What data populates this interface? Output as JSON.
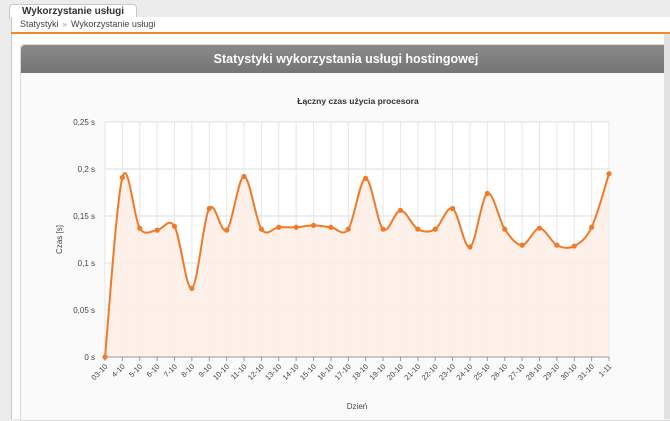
{
  "tab": {
    "title": "Wykorzystanie usługi"
  },
  "breadcrumb": {
    "items": [
      "Statystyki",
      "Wykorzystanie usługi"
    ],
    "separator": "»"
  },
  "panel": {
    "title": "Statystyki wykorzystania usługi hostingowej"
  },
  "colors": {
    "accent": "#f08a2c",
    "line": "#f07a2a",
    "fill": "#fdeee6",
    "header": "#7d7d7d"
  },
  "chart_data": {
    "type": "area",
    "title": "Łączny czas użycia procesora",
    "xlabel": "Dzień",
    "ylabel": "Czas [s]",
    "ylim": [
      0,
      0.25
    ],
    "yticks": [
      "0 s",
      "0,05 s",
      "0,1 s",
      "0,15 s",
      "0,2 s",
      "0,25 s"
    ],
    "categories": [
      "03-10",
      "4-10",
      "5-10",
      "6-10",
      "7-10",
      "8-10",
      "9-10",
      "10-10",
      "11-10",
      "12-10",
      "13-10",
      "14-10",
      "15-10",
      "16-10",
      "17-10",
      "18-10",
      "19-10",
      "20-10",
      "21-10",
      "22-10",
      "23-10",
      "24-10",
      "25-10",
      "26-10",
      "27-10",
      "28-10",
      "29-10",
      "30-10",
      "31-10",
      "1-11"
    ],
    "series": [
      {
        "values": [
          0,
          0.191,
          0.137,
          0.135,
          0.139,
          0.073,
          0.158,
          0.135,
          0.192,
          0.136,
          0.138,
          0.138,
          0.14,
          0.138,
          0.136,
          0.19,
          0.136,
          0.156,
          0.136,
          0.136,
          0.158,
          0.117,
          0.174,
          0.136,
          0.119,
          0.137,
          0.119,
          0.118,
          0.138,
          0.195
        ]
      }
    ],
    "grid": true,
    "smooth": true
  }
}
